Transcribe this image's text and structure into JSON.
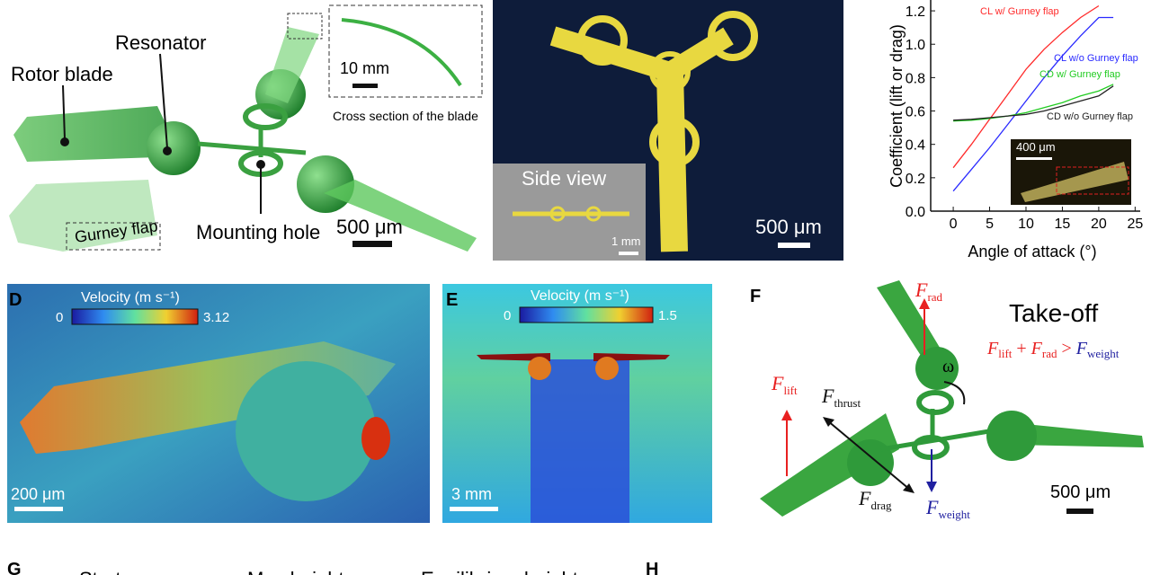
{
  "panel_a": {
    "labels": [
      "Rotor blade",
      "Resonator",
      "Gurney flap",
      "Mounting hole"
    ],
    "inset_scale": "10 mm",
    "inset_caption": "Cross section of the blade",
    "scale": "500 μm"
  },
  "panel_b": {
    "inset_title": "Side view",
    "inset_scale": "1 mm",
    "scale": "500 μm"
  },
  "chart_data": {
    "type": "line",
    "x_label": "Angle of attack (°)",
    "y_label": "Coefficient (lift or drag)",
    "x": [
      0,
      2.5,
      5,
      7.5,
      10,
      12.5,
      15,
      17.5,
      20,
      22
    ],
    "series": [
      {
        "name": "CL w/ Gurney flap",
        "color": "#ff2a2a",
        "values": [
          0.26,
          0.4,
          0.55,
          0.7,
          0.85,
          0.97,
          1.07,
          1.16,
          1.23,
          null
        ]
      },
      {
        "name": "CL w/o Gurney flap",
        "color": "#2a2aff",
        "values": [
          0.12,
          0.25,
          0.38,
          0.52,
          0.66,
          0.8,
          0.93,
          1.05,
          1.16,
          1.16
        ]
      },
      {
        "name": "CD w/ Gurney flap",
        "color": "#22cc22",
        "values": [
          0.54,
          0.545,
          0.555,
          0.57,
          0.59,
          0.62,
          0.65,
          0.69,
          0.72,
          0.76
        ]
      },
      {
        "name": "CD w/o Gurney flap",
        "color": "#222222",
        "values": [
          0.545,
          0.55,
          0.56,
          0.57,
          0.58,
          0.6,
          0.63,
          0.66,
          0.69,
          0.75
        ]
      }
    ],
    "xlim": [
      -3.1,
      25.7
    ],
    "ylim": [
      0,
      1.265
    ],
    "xticks": [
      0,
      5,
      10,
      15,
      20,
      25
    ],
    "yticks": [
      {
        "value": 0,
        "label": "0.0"
      },
      0.2,
      0.4,
      0.6,
      0.8,
      {
        "value": 1,
        "label": "1.0"
      },
      1.2
    ],
    "inset_scale": "400 μm"
  },
  "panel_d": {
    "letter": "D",
    "colorbar_title": "Velocity (m s⁻¹)",
    "colorbar_min": 0,
    "colorbar_max": 3.12,
    "scale": "200 μm"
  },
  "panel_e": {
    "letter": "E",
    "colorbar_title": "Velocity (m s⁻¹)",
    "colorbar_min": 0,
    "colorbar_max": 1.5,
    "scale": "3 mm"
  },
  "panel_f": {
    "letter": "F",
    "title": "Take-off",
    "forces": [
      [
        "F",
        "rad"
      ],
      [
        "F",
        "lift"
      ],
      [
        "F",
        "thrust"
      ],
      [
        "F",
        "drag"
      ],
      [
        "F",
        "weight"
      ]
    ],
    "omega": "ω",
    "equation": [
      "F",
      "lift",
      " + ",
      "F",
      "rad",
      " > ",
      "F",
      "weight"
    ],
    "scale": "500 μm"
  },
  "panel_g": {
    "letter": "G",
    "labels": [
      "Start",
      "Max height",
      "Equilibrium height"
    ]
  },
  "panel_h": {
    "letter": "H"
  }
}
